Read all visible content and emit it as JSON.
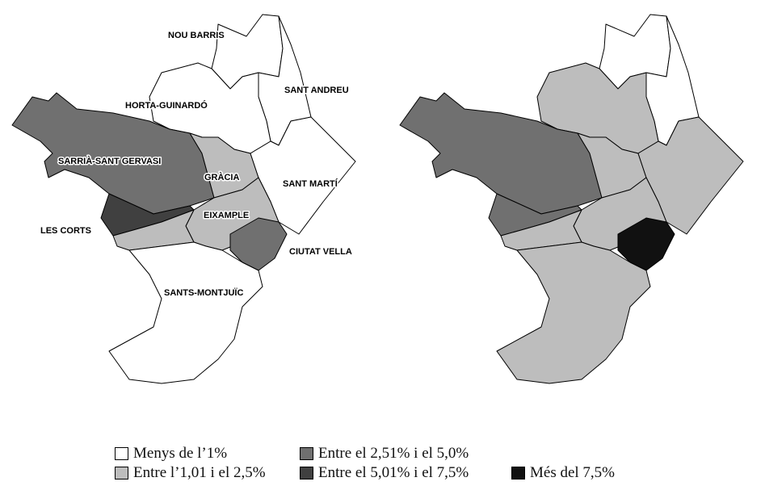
{
  "district_labels": {
    "nou_barris": "NOU BARRIS",
    "sant_andreu": "SANT ANDREU",
    "horta_guinardo": "HORTA-GUINARDÓ",
    "sarria_sant_gervasi": "SARRIÀ-SANT GERVASI",
    "gracia": "GRÀCIA",
    "sant_marti": "SANT MARTÍ",
    "eixample": "EIXAMPLE",
    "les_corts": "LES CORTS",
    "ciutat_vella": "CIUTAT VELLA",
    "sants_montjuic": "SANTS-MONTJUÏC"
  },
  "legend": [
    {
      "id": "lt1",
      "label": "Menys de l’1%",
      "color": "#ffffff"
    },
    {
      "id": "1to25",
      "label": "Entre l’1,01 i el 2,5%",
      "color": "#bdbdbd"
    },
    {
      "id": "25to5",
      "label": "Entre el 2,51% i el 5,0%",
      "color": "#707070"
    },
    {
      "id": "5to75",
      "label": "Entre el 5,01% i el 7,5%",
      "color": "#404040"
    },
    {
      "id": "gt75",
      "label": "Més del 7,5%",
      "color": "#111111"
    }
  ],
  "map_left_fills": {
    "nou_barris": "lt1",
    "sant_andreu": "lt1",
    "horta_guinardo": "lt1",
    "sarria_sant_gervasi": "25to5",
    "gracia": "1to25",
    "sant_marti": "lt1",
    "eixample": "1to25",
    "les_corts": "5to75",
    "les_corts_south": "1to25",
    "ciutat_vella": "25to5",
    "sants_montjuic": "lt1"
  },
  "map_right_fills": {
    "nou_barris": "lt1",
    "sant_andreu": "lt1",
    "horta_guinardo": "1to25",
    "sarria_sant_gervasi": "25to5",
    "gracia": "1to25",
    "sant_marti": "1to25",
    "eixample": "1to25",
    "les_corts": "25to5",
    "les_corts_south": "1to25",
    "ciutat_vella": "gt75",
    "sants_montjuic": "1to25"
  }
}
